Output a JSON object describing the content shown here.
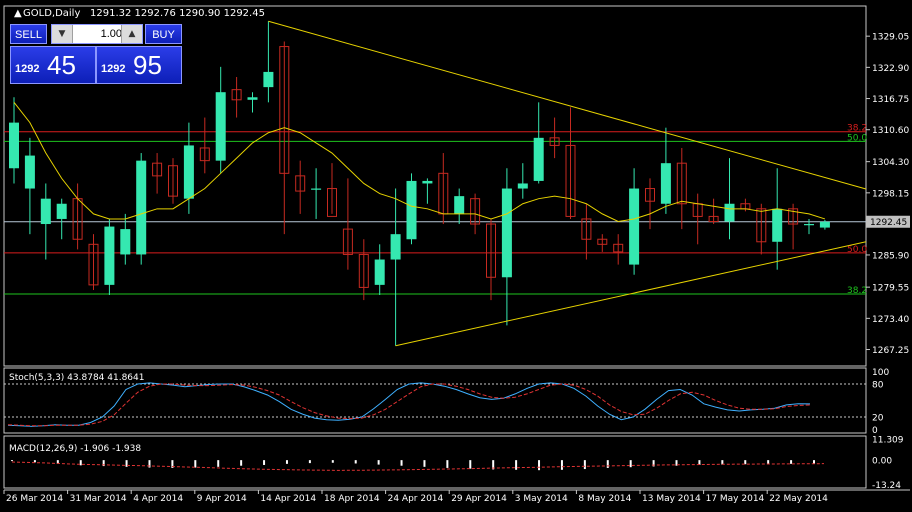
{
  "colors": {
    "background": "#000000",
    "grid": "#c8c8c8",
    "bull": "#35e8b0",
    "bear": "#c62a21",
    "triangle": "#e6d200",
    "ma": "#e6d200",
    "fib_red": "#d91e1e",
    "fib_green": "#1ec31e",
    "price_line": "#b7c7d8",
    "stoch_main": "#3fb0ff",
    "stoch_signal": "#e03333",
    "text": "#ffffff"
  },
  "title": "GOLD,Daily",
  "ohlc_text": "1291.32 1292.76 1290.90 1292.45",
  "trade_panel": {
    "sell_label": "SELL",
    "buy_label": "BUY",
    "lots": "1.00",
    "bid_prefix": "1292",
    "bid_suffix": "45",
    "ask_prefix": "1292",
    "ask_suffix": "95",
    "down_icon": "triangle-down-icon",
    "up_icon": "triangle-up-icon"
  },
  "current_price_label": "1292.45",
  "fib_labels": {
    "top_red": "38.2",
    "top_green": "50.0",
    "mid_red": "50.0",
    "bottom_green": "38.2"
  },
  "stoch_label": "Stoch(5,3,3) 43.8784 41.8641",
  "macd_label": "MACD(12,26,9) -1.906 -1.938",
  "chart_data": [
    {
      "type": "candlestick",
      "title": "GOLD,Daily",
      "ylim": [
        1264.0,
        1335.0
      ],
      "y_ticks": [
        "1329.05",
        "1322.90",
        "1316.75",
        "1310.60",
        "1304.30",
        "1298.15",
        "1292.45",
        "1285.90",
        "1279.55",
        "1273.40",
        "1267.25"
      ],
      "y_tick_values": [
        1329.05,
        1322.9,
        1316.75,
        1310.6,
        1304.3,
        1298.15,
        1292.45,
        1285.9,
        1279.55,
        1273.4,
        1267.25
      ],
      "x_tick_labels": [
        "26 Mar 2014",
        "31 Mar 2014",
        "4 Apr 2014",
        "9 Apr 2014",
        "14 Apr 2014",
        "18 Apr 2014",
        "24 Apr 2014",
        "29 Apr 2014",
        "3 May 2014",
        "8 May 2014",
        "13 May 2014",
        "17 May 2014",
        "22 May 2014"
      ],
      "x_tick_index": [
        0,
        4,
        8,
        12,
        16,
        20,
        24,
        28,
        32,
        36,
        40,
        44,
        48
      ],
      "candles": [
        {
          "o": 1303.0,
          "h": 1317.0,
          "l": 1300.0,
          "c": 1312.0
        },
        {
          "o": 1299.0,
          "h": 1309.0,
          "l": 1290.0,
          "c": 1305.5
        },
        {
          "o": 1292.0,
          "h": 1300.0,
          "l": 1285.0,
          "c": 1297.0
        },
        {
          "o": 1293.0,
          "h": 1297.0,
          "l": 1289.0,
          "c": 1296.0
        },
        {
          "o": 1297.0,
          "h": 1300.0,
          "l": 1287.0,
          "c": 1289.0
        },
        {
          "o": 1288.0,
          "h": 1290.0,
          "l": 1279.0,
          "c": 1280.0
        },
        {
          "o": 1280.0,
          "h": 1293.0,
          "l": 1278.0,
          "c": 1291.5
        },
        {
          "o": 1286.0,
          "h": 1294.0,
          "l": 1284.0,
          "c": 1291.0
        },
        {
          "o": 1286.0,
          "h": 1306.0,
          "l": 1284.0,
          "c": 1304.5
        },
        {
          "o": 1304.0,
          "h": 1306.0,
          "l": 1298.0,
          "c": 1301.5
        },
        {
          "o": 1303.5,
          "h": 1305.0,
          "l": 1296.0,
          "c": 1297.5
        },
        {
          "o": 1297.0,
          "h": 1312.0,
          "l": 1294.0,
          "c": 1307.5
        },
        {
          "o": 1307.0,
          "h": 1313.0,
          "l": 1302.0,
          "c": 1304.5
        },
        {
          "o": 1304.5,
          "h": 1323.0,
          "l": 1302.0,
          "c": 1318.0
        },
        {
          "o": 1318.5,
          "h": 1321.0,
          "l": 1313.0,
          "c": 1316.5
        },
        {
          "o": 1316.5,
          "h": 1318.0,
          "l": 1314.0,
          "c": 1317.0
        },
        {
          "o": 1319.0,
          "h": 1332.0,
          "l": 1316.0,
          "c": 1322.0
        },
        {
          "o": 1327.0,
          "h": 1328.0,
          "l": 1290.0,
          "c": 1302.0
        },
        {
          "o": 1301.5,
          "h": 1304.5,
          "l": 1294.0,
          "c": 1298.5
        },
        {
          "o": 1299.0,
          "h": 1303.0,
          "l": 1293.0,
          "c": 1299.0
        },
        {
          "o": 1299.0,
          "h": 1304.0,
          "l": 1294.0,
          "c": 1293.5
        },
        {
          "o": 1291.0,
          "h": 1301.0,
          "l": 1283.0,
          "c": 1286.0
        },
        {
          "o": 1286.0,
          "h": 1289.0,
          "l": 1277.0,
          "c": 1279.5
        },
        {
          "o": 1280.0,
          "h": 1288.0,
          "l": 1278.0,
          "c": 1285.0
        },
        {
          "o": 1285.0,
          "h": 1299.0,
          "l": 1268.0,
          "c": 1290.0
        },
        {
          "o": 1289.0,
          "h": 1302.0,
          "l": 1288.0,
          "c": 1300.5
        },
        {
          "o": 1300.0,
          "h": 1301.0,
          "l": 1296.0,
          "c": 1300.5
        },
        {
          "o": 1302.0,
          "h": 1306.0,
          "l": 1292.0,
          "c": 1294.0
        },
        {
          "o": 1294.0,
          "h": 1299.0,
          "l": 1292.0,
          "c": 1297.5
        },
        {
          "o": 1297.0,
          "h": 1298.0,
          "l": 1290.0,
          "c": 1292.0
        },
        {
          "o": 1292.0,
          "h": 1293.0,
          "l": 1277.0,
          "c": 1281.5
        },
        {
          "o": 1281.5,
          "h": 1303.0,
          "l": 1272.0,
          "c": 1299.0
        },
        {
          "o": 1299.0,
          "h": 1304.0,
          "l": 1297.0,
          "c": 1300.0
        },
        {
          "o": 1300.5,
          "h": 1316.0,
          "l": 1300.0,
          "c": 1309.0
        },
        {
          "o": 1309.0,
          "h": 1313.0,
          "l": 1305.0,
          "c": 1307.5
        },
        {
          "o": 1307.5,
          "h": 1315.0,
          "l": 1293.0,
          "c": 1293.5
        },
        {
          "o": 1293.0,
          "h": 1296.0,
          "l": 1285.0,
          "c": 1289.0
        },
        {
          "o": 1289.0,
          "h": 1290.0,
          "l": 1286.5,
          "c": 1288.0
        },
        {
          "o": 1288.0,
          "h": 1290.0,
          "l": 1284.0,
          "c": 1286.5
        },
        {
          "o": 1284.0,
          "h": 1303.0,
          "l": 1282.0,
          "c": 1299.0
        },
        {
          "o": 1299.0,
          "h": 1301.0,
          "l": 1291.0,
          "c": 1296.5
        },
        {
          "o": 1296.0,
          "h": 1311.0,
          "l": 1294.0,
          "c": 1304.0
        },
        {
          "o": 1304.0,
          "h": 1307.0,
          "l": 1291.0,
          "c": 1296.0
        },
        {
          "o": 1296.0,
          "h": 1298.0,
          "l": 1288.0,
          "c": 1293.5
        },
        {
          "o": 1293.5,
          "h": 1297.0,
          "l": 1292.0,
          "c": 1292.5
        },
        {
          "o": 1292.5,
          "h": 1305.0,
          "l": 1289.0,
          "c": 1296.0
        },
        {
          "o": 1296.0,
          "h": 1297.0,
          "l": 1294.5,
          "c": 1295.0
        },
        {
          "o": 1295.0,
          "h": 1296.0,
          "l": 1286.0,
          "c": 1288.5
        },
        {
          "o": 1288.5,
          "h": 1303.0,
          "l": 1283.0,
          "c": 1295.0
        },
        {
          "o": 1295.0,
          "h": 1296.0,
          "l": 1287.0,
          "c": 1292.0
        },
        {
          "o": 1292.0,
          "h": 1293.0,
          "l": 1290.0,
          "c": 1292.0
        },
        {
          "o": 1291.3,
          "h": 1292.8,
          "l": 1290.9,
          "c": 1292.45
        }
      ],
      "moving_average": [
        1316,
        1312,
        1306,
        1301,
        1297,
        1294,
        1293,
        1293,
        1294,
        1295,
        1295,
        1297,
        1299,
        1302,
        1305,
        1308,
        1310,
        1311,
        1310,
        1308,
        1306,
        1303,
        1300,
        1298,
        1297,
        1295.5,
        1295,
        1294,
        1294,
        1294,
        1293,
        1294,
        1296,
        1297,
        1297.5,
        1297,
        1296,
        1294,
        1292.5,
        1293,
        1294,
        1295.5,
        1296.5,
        1296,
        1295.5,
        1295,
        1295,
        1294.5,
        1295,
        1294.5,
        1294,
        1293
      ],
      "trendlines": [
        {
          "name": "upper-trendline",
          "from": [
            16,
            1332.0
          ],
          "to": [
            64,
            1298.9
          ]
        },
        {
          "name": "lower-trendline",
          "from": [
            24,
            1268.0
          ],
          "to": [
            64,
            1288.5
          ]
        }
      ],
      "horizontal_levels": [
        {
          "name": "fib-38-2-red",
          "price": 1310.2,
          "label": "38.2",
          "color": "#d91e1e"
        },
        {
          "name": "fib-50-0-green",
          "price": 1308.3,
          "label": "50.0",
          "color": "#1ec31e"
        },
        {
          "name": "fib-50-0-red",
          "price": 1286.3,
          "label": "50.0",
          "color": "#d91e1e"
        },
        {
          "name": "fib-38-2-green",
          "price": 1278.2,
          "label": "38.2",
          "color": "#1ec31e"
        }
      ],
      "current_price": 1292.45
    },
    {
      "type": "line",
      "title": "Stoch(5,3,3) 43.8784 41.8641",
      "ylim": [
        0,
        100
      ],
      "y_ticks": [
        "100",
        "80",
        "20",
        "0"
      ],
      "levels": [
        80,
        20
      ],
      "series": [
        {
          "values": [
            5,
            4,
            3,
            4,
            6,
            5,
            5,
            10,
            20,
            40,
            70,
            80,
            82,
            80,
            78,
            75,
            77,
            79,
            80,
            80,
            75,
            68,
            60,
            48,
            34,
            25,
            18,
            15,
            14,
            16,
            20,
            35,
            52,
            70,
            80,
            82,
            80,
            76,
            70,
            62,
            55,
            52,
            54,
            62,
            72,
            80,
            82,
            80,
            72,
            58,
            40,
            25,
            15,
            20,
            34,
            52,
            68,
            70,
            60,
            44,
            38,
            33,
            31,
            33,
            34,
            36,
            42,
            44,
            43.9
          ]
        },
        {
          "values": [
            6,
            5,
            4,
            4,
            5,
            5,
            5,
            7,
            12,
            24,
            45,
            65,
            76,
            80,
            80,
            78,
            77,
            77,
            78,
            79,
            78,
            74,
            68,
            60,
            48,
            37,
            28,
            22,
            18,
            17,
            18,
            24,
            34,
            48,
            62,
            75,
            80,
            80,
            76,
            70,
            62,
            56,
            54,
            56,
            62,
            70,
            78,
            80,
            78,
            70,
            58,
            42,
            30,
            24,
            25,
            36,
            50,
            62,
            65,
            60,
            50,
            42,
            36,
            34,
            34,
            35,
            39,
            41,
            41.9
          ]
        }
      ]
    },
    {
      "type": "bar",
      "title": "MACD(12,26,9) -1.906 -1.938",
      "ylim": [
        -15,
        13
      ],
      "y_ticks": [
        "11.309",
        "0.00",
        "-13.24"
      ],
      "series": [
        {
          "values": [
            -0.5,
            -1.2,
            -2.0,
            -2.8,
            -3.2,
            -3.6,
            -4.0,
            -4.2,
            -4.0,
            -3.6,
            -3.0,
            -2.6,
            -2.0,
            -1.6,
            -1.4,
            -1.8,
            -2.4,
            -3.0,
            -3.6,
            -4.2,
            -4.6,
            -5.0,
            -5.2,
            -5.4,
            -5.2,
            -4.8,
            -4.2,
            -3.8,
            -3.4,
            -3.0,
            -2.6,
            -2.4,
            -2.2,
            -2.1,
            -2.0,
            -1.9
          ]
        },
        {
          "values": [
            -1.0,
            -1.5,
            -2.2,
            -2.6,
            -3.0,
            -3.5,
            -4.0,
            -4.6,
            -5.0,
            -5.3,
            -5.5,
            -5.4,
            -5.2,
            -4.9,
            -4.6,
            -4.2,
            -3.9,
            -3.5,
            -3.2,
            -2.9,
            -2.6,
            -2.4,
            -2.2,
            -2.1,
            -2.0,
            -1.9
          ]
        }
      ]
    }
  ]
}
